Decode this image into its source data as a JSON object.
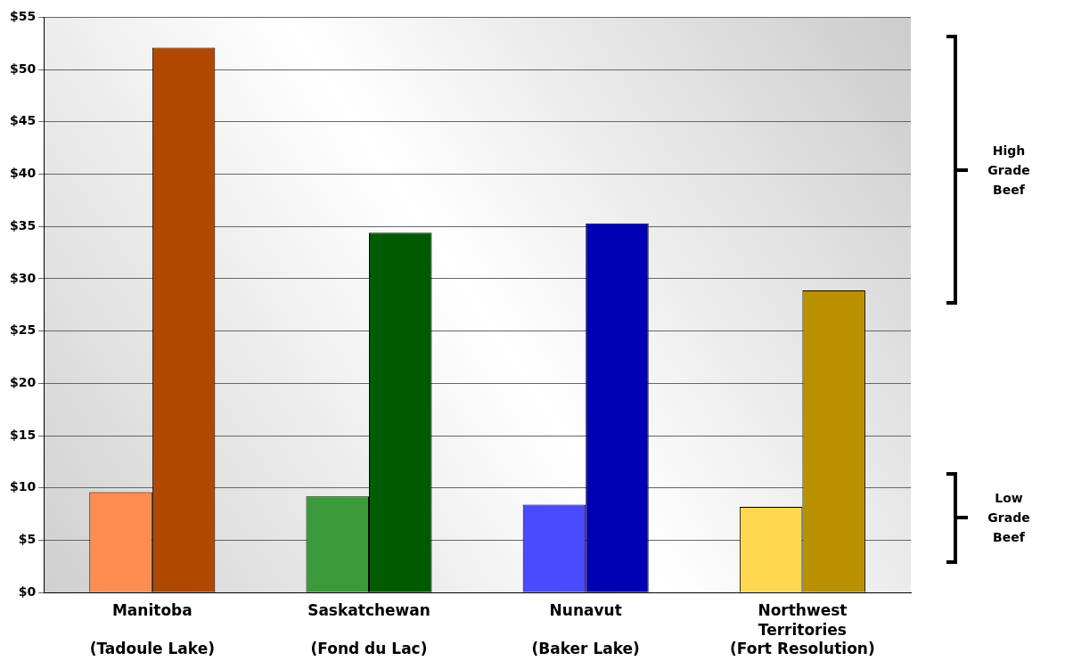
{
  "chart_data": {
    "type": "bar",
    "categories": [
      "Manitoba\n\n(Tadoule Lake)",
      "Saskatchewan\n\n(Fond du Lac)",
      "Nunavut\n\n(Baker Lake)",
      "Northwest\nTerritories\n(Fort Resolution)"
    ],
    "series": [
      {
        "colors": [
          "#ff8c50",
          "#3a9a3a",
          "#4a4aff",
          "#ffd850"
        ],
        "values": [
          9.6,
          9.2,
          8.4,
          8.2
        ]
      },
      {
        "colors": [
          "#b04800",
          "#005a00",
          "#0000b4",
          "#b89000"
        ],
        "values": [
          52.1,
          34.4,
          35.3,
          28.9
        ]
      }
    ],
    "ylim": [
      0,
      55
    ],
    "yticks": [
      {
        "value": 0,
        "label": "$0"
      },
      {
        "value": 5,
        "label": "$5"
      },
      {
        "value": 10,
        "label": "$10"
      },
      {
        "value": 15,
        "label": "$15"
      },
      {
        "value": 20,
        "label": "$20"
      },
      {
        "value": 25,
        "label": "$25"
      },
      {
        "value": 30,
        "label": "$30"
      },
      {
        "value": 35,
        "label": "$35"
      },
      {
        "value": 40,
        "label": "$40"
      },
      {
        "value": 45,
        "label": "$45"
      },
      {
        "value": 50,
        "label": "$50"
      },
      {
        "value": 55,
        "label": "$55"
      }
    ],
    "grid": "y",
    "legend": false,
    "annotations": [
      "High\nGrade\nBeef",
      "Low\nGrade\nBeef"
    ]
  }
}
